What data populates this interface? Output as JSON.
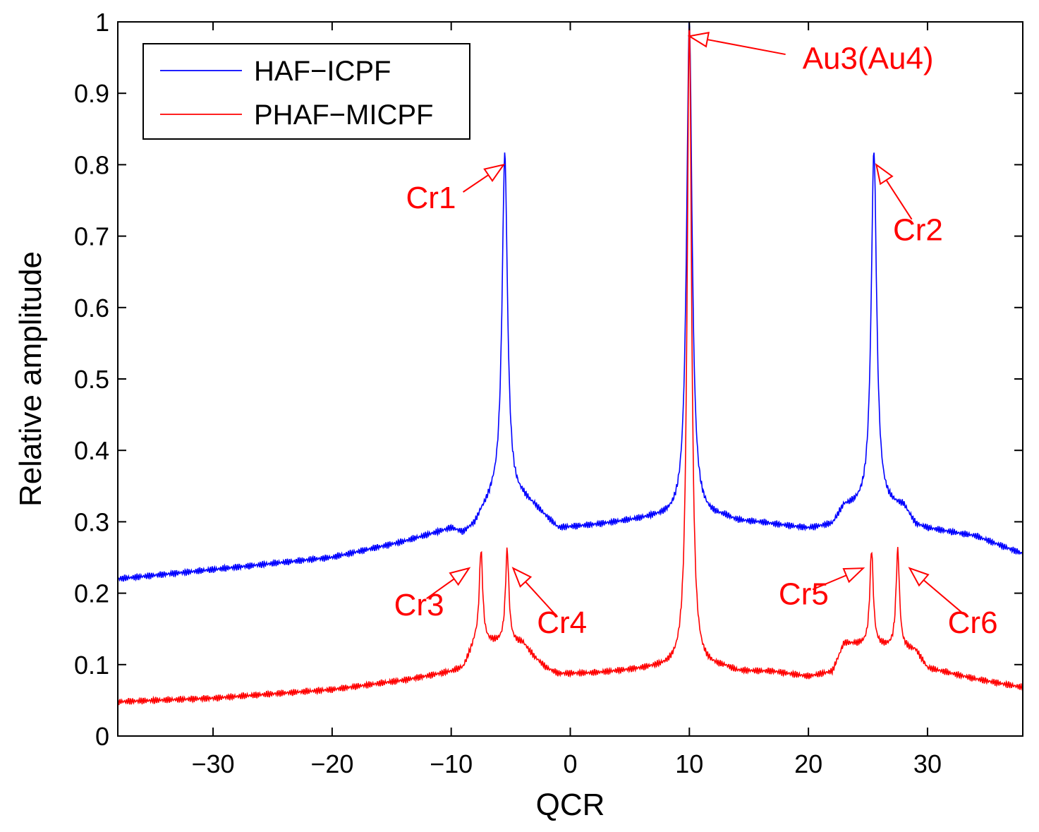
{
  "chart_data": {
    "type": "line",
    "title": "",
    "xlabel": "QCR",
    "ylabel": "Relative amplitude",
    "xlim": [
      -38,
      38
    ],
    "ylim": [
      0,
      1
    ],
    "xticks": [
      -30,
      -20,
      -10,
      0,
      10,
      20,
      30
    ],
    "xtick_labels": [
      "−30",
      "−20",
      "−10",
      "0",
      "10",
      "20",
      "30"
    ],
    "yticks": [
      0,
      0.1,
      0.2,
      0.3,
      0.4,
      0.5,
      0.6,
      0.7,
      0.8,
      0.9,
      1
    ],
    "ytick_labels": [
      "0",
      "0.1",
      "0.2",
      "0.3",
      "0.4",
      "0.5",
      "0.6",
      "0.7",
      "0.8",
      "0.9",
      "1"
    ],
    "grid": false,
    "legend_position": "top-left",
    "series": [
      {
        "name": "HAF−ICPF",
        "color": "#0000ff",
        "baseline": [
          [
            -38,
            0.22
          ],
          [
            -30,
            0.233
          ],
          [
            -20,
            0.25
          ],
          [
            -14,
            0.272
          ],
          [
            -10,
            0.29
          ],
          [
            -9,
            0.283
          ],
          [
            -8,
            0.295
          ],
          [
            -7.5,
            0.31
          ],
          [
            -6.5,
            0.33
          ],
          [
            -4,
            0.33
          ],
          [
            -3,
            0.32
          ],
          [
            -2,
            0.305
          ],
          [
            -1,
            0.29
          ],
          [
            2,
            0.295
          ],
          [
            6,
            0.303
          ],
          [
            7,
            0.305
          ],
          [
            13,
            0.305
          ],
          [
            14,
            0.3
          ],
          [
            16,
            0.298
          ],
          [
            20,
            0.29
          ],
          [
            22,
            0.295
          ],
          [
            23,
            0.32
          ],
          [
            28,
            0.32
          ],
          [
            29,
            0.295
          ],
          [
            30,
            0.29
          ],
          [
            34,
            0.28
          ],
          [
            38,
            0.255
          ]
        ],
        "peaks": [
          {
            "x": -5.5,
            "height": 0.815,
            "width": 0.55
          },
          {
            "x": 10,
            "height": 1.0,
            "width": 0.55
          },
          {
            "x": 25.5,
            "height": 0.82,
            "width": 0.55
          }
        ]
      },
      {
        "name": "PHAF−MICPF",
        "color": "#ff0000",
        "baseline": [
          [
            -38,
            0.048
          ],
          [
            -30,
            0.053
          ],
          [
            -20,
            0.065
          ],
          [
            -14,
            0.078
          ],
          [
            -10,
            0.09
          ],
          [
            -9,
            0.095
          ],
          [
            -8,
            0.13
          ],
          [
            -4,
            0.13
          ],
          [
            -3,
            0.11
          ],
          [
            -2,
            0.095
          ],
          [
            -1,
            0.087
          ],
          [
            2,
            0.088
          ],
          [
            5,
            0.092
          ],
          [
            7,
            0.095
          ],
          [
            13,
            0.095
          ],
          [
            14,
            0.09
          ],
          [
            17,
            0.09
          ],
          [
            20,
            0.083
          ],
          [
            22,
            0.09
          ],
          [
            23,
            0.13
          ],
          [
            29,
            0.12
          ],
          [
            30,
            0.095
          ],
          [
            34,
            0.08
          ],
          [
            38,
            0.068
          ]
        ],
        "peaks": [
          {
            "x": -7.5,
            "height": 0.26,
            "width": 0.35
          },
          {
            "x": -5.3,
            "height": 0.26,
            "width": 0.35
          },
          {
            "x": 10,
            "height": 1.0,
            "width": 0.45
          },
          {
            "x": 25.3,
            "height": 0.26,
            "width": 0.35
          },
          {
            "x": 27.5,
            "height": 0.26,
            "width": 0.35
          }
        ]
      }
    ],
    "annotations": [
      {
        "text": "Au3(Au4)",
        "target": [
          10,
          0.98
        ],
        "text_at": [
          19.5,
          0.95
        ],
        "anchor": "start",
        "color": "#ff0000"
      },
      {
        "text": "Cr1",
        "target": [
          -5.6,
          0.8
        ],
        "text_at": [
          -9.6,
          0.755
        ],
        "anchor": "end",
        "color": "#ff0000"
      },
      {
        "text": "Cr2",
        "target": [
          25.7,
          0.8
        ],
        "text_at": [
          29.2,
          0.71
        ],
        "anchor": "middle",
        "color": "#ff0000"
      },
      {
        "text": "Cr3",
        "target": [
          -8.5,
          0.235
        ],
        "text_at": [
          -12.7,
          0.185
        ],
        "anchor": "middle",
        "color": "#ff0000"
      },
      {
        "text": "Cr4",
        "target": [
          -4.8,
          0.235
        ],
        "text_at": [
          -0.7,
          0.16
        ],
        "anchor": "middle",
        "color": "#ff0000"
      },
      {
        "text": "Cr5",
        "target": [
          24.6,
          0.235
        ],
        "text_at": [
          19.6,
          0.2
        ],
        "anchor": "middle",
        "color": "#ff0000"
      },
      {
        "text": "Cr6",
        "target": [
          28.5,
          0.235
        ],
        "text_at": [
          33.8,
          0.16
        ],
        "anchor": "middle",
        "color": "#ff0000"
      }
    ]
  }
}
